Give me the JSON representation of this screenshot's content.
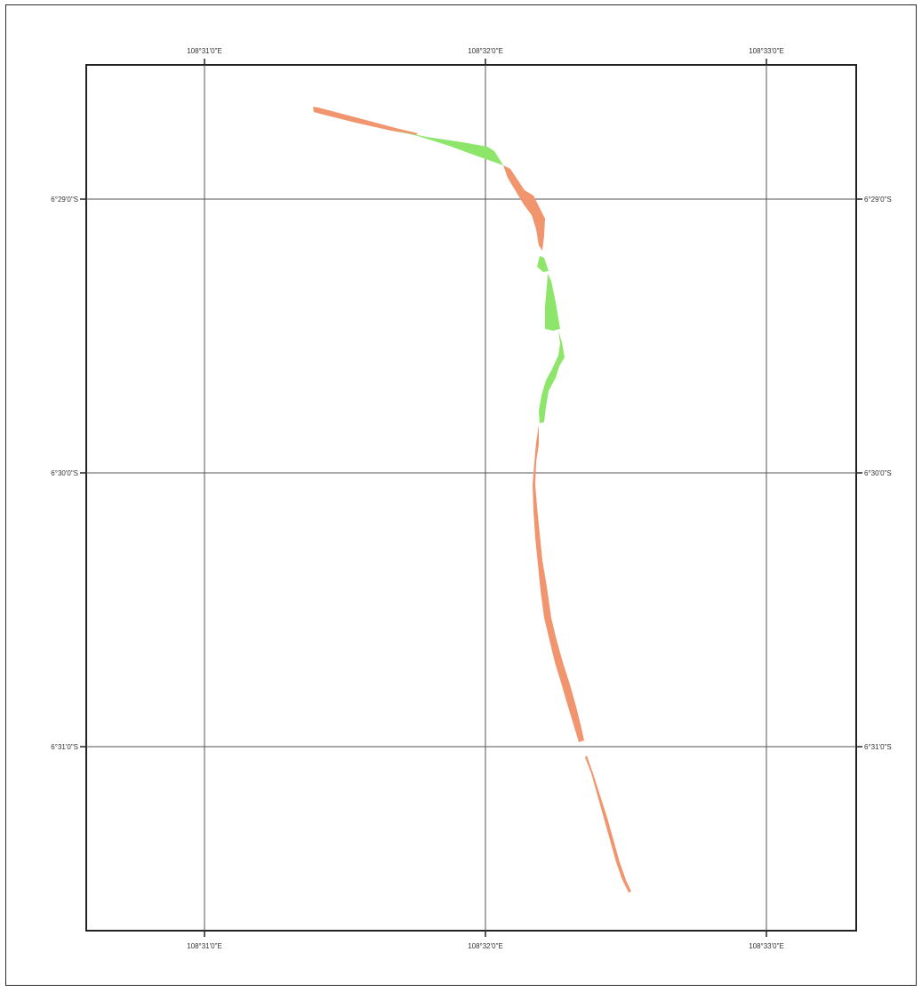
{
  "map": {
    "graticule": {
      "longitude_labels": [
        "108°31'0\"E",
        "108°32'0\"E",
        "108°33'0\"E"
      ],
      "latitude_labels": [
        "6°29'0\"S",
        "6°30'0\"S",
        "6°31'0\"S"
      ]
    },
    "shoreline_change": {
      "colors": {
        "erosion_or_segment_a": "#f0956e",
        "accretion_or_segment_b": "#8de66a"
      },
      "segments": [
        {
          "color_key": "orange"
        },
        {
          "color_key": "green"
        },
        {
          "color_key": "orange"
        },
        {
          "color_key": "green"
        },
        {
          "color_key": "green"
        },
        {
          "color_key": "green"
        },
        {
          "color_key": "orange"
        },
        {
          "color_key": "orange"
        }
      ]
    },
    "colors": {
      "frame": "#222222",
      "grid": "#555555",
      "background": "#ffffff"
    }
  }
}
